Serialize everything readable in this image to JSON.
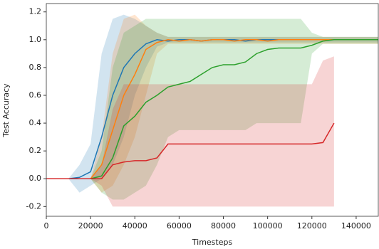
{
  "chart_data": {
    "type": "line",
    "xlabel": "Timesteps",
    "ylabel": "Test Accuracy",
    "x": [
      0,
      5000,
      10000,
      15000,
      20000,
      25000,
      30000,
      35000,
      40000,
      45000,
      50000,
      55000,
      60000,
      65000,
      70000,
      75000,
      80000,
      85000,
      90000,
      95000,
      100000,
      105000,
      110000,
      115000,
      120000,
      125000,
      130000,
      135000,
      140000,
      145000,
      150000
    ],
    "series": [
      {
        "color": "#1f77b4",
        "values": [
          0,
          0,
          0,
          0.01,
          0.05,
          0.3,
          0.6,
          0.8,
          0.9,
          0.97,
          1.0,
          0.99,
          1.0,
          1.0,
          0.99,
          1.0,
          1.0,
          1.0,
          0.99,
          1.0,
          1.0,
          1.0,
          1.0,
          1.0,
          1.0,
          1.0,
          1.0,
          1.0,
          1.0,
          1.0,
          1.0
        ],
        "lower": [
          0,
          0,
          0,
          -0.1,
          -0.05,
          0.0,
          0.1,
          0.3,
          0.6,
          0.8,
          0.95,
          0.98,
          0.98,
          0.98,
          0.98,
          0.98,
          0.98,
          0.98,
          0.98,
          0.98,
          0.98,
          0.98,
          0.98,
          0.98,
          0.98,
          0.98,
          0.98,
          0.98,
          0.98,
          0.98,
          0.98
        ],
        "upper": [
          0,
          0,
          0,
          0.1,
          0.25,
          0.9,
          1.15,
          1.18,
          1.15,
          1.1,
          1.05,
          1.02,
          1.02,
          1.02,
          1.02,
          1.02,
          1.02,
          1.02,
          1.02,
          1.02,
          1.02,
          1.02,
          1.02,
          1.02,
          1.02,
          1.02,
          1.02,
          1.02,
          1.02,
          1.02,
          1.02
        ]
      },
      {
        "color": "#ff7f0e",
        "values": [
          0,
          0,
          0,
          0,
          0,
          0.1,
          0.35,
          0.6,
          0.75,
          0.93,
          0.98,
          1.0,
          0.99,
          1.0,
          0.99,
          1.0,
          1.0,
          0.99,
          1.0,
          1.0,
          0.99,
          1.0,
          1.0,
          1.0,
          1.0,
          1.0,
          1.0,
          1.0,
          1.0,
          1.0,
          1.0
        ],
        "lower": [
          0,
          0,
          0,
          0,
          0,
          -0.1,
          -0.05,
          0.1,
          0.3,
          0.6,
          0.9,
          0.97,
          0.97,
          0.97,
          0.97,
          0.97,
          0.97,
          0.97,
          0.97,
          0.97,
          0.97,
          0.97,
          0.97,
          0.97,
          0.97,
          0.97,
          0.97,
          0.97,
          0.97,
          0.97,
          0.97
        ],
        "upper": [
          0,
          0,
          0,
          0,
          0,
          0.3,
          0.9,
          1.15,
          1.18,
          1.1,
          1.05,
          1.02,
          1.02,
          1.02,
          1.02,
          1.02,
          1.02,
          1.02,
          1.02,
          1.02,
          1.02,
          1.02,
          1.02,
          1.02,
          1.02,
          1.02,
          1.02,
          1.02,
          1.02,
          1.02,
          1.02
        ]
      },
      {
        "color": "#2ca02c",
        "values": [
          0,
          0,
          0,
          0,
          0,
          0.02,
          0.15,
          0.38,
          0.45,
          0.55,
          0.6,
          0.66,
          0.68,
          0.7,
          0.75,
          0.8,
          0.82,
          0.82,
          0.84,
          0.9,
          0.93,
          0.94,
          0.94,
          0.94,
          0.96,
          0.99,
          1.0,
          1.0,
          1.0,
          1.0,
          1.0
        ],
        "lower": [
          0,
          0,
          0,
          0,
          0,
          -0.1,
          -0.15,
          -0.15,
          -0.1,
          -0.05,
          0.1,
          0.3,
          0.35,
          0.35,
          0.35,
          0.35,
          0.35,
          0.35,
          0.35,
          0.4,
          0.4,
          0.4,
          0.4,
          0.4,
          0.9,
          0.97,
          0.97,
          0.97,
          0.97,
          0.97,
          0.97
        ],
        "upper": [
          0,
          0,
          0,
          0,
          0,
          0.2,
          0.8,
          1.05,
          1.1,
          1.15,
          1.15,
          1.15,
          1.15,
          1.15,
          1.15,
          1.15,
          1.15,
          1.15,
          1.15,
          1.15,
          1.15,
          1.15,
          1.15,
          1.15,
          1.05,
          1.02,
          1.02,
          1.02,
          1.02,
          1.02,
          1.02
        ]
      },
      {
        "color": "#d62728",
        "values": [
          0,
          0,
          0,
          0,
          0,
          0,
          0.1,
          0.12,
          0.13,
          0.13,
          0.15,
          0.25,
          0.25,
          0.25,
          0.25,
          0.25,
          0.25,
          0.25,
          0.25,
          0.25,
          0.25,
          0.25,
          0.25,
          0.25,
          0.25,
          0.26,
          0.4,
          null,
          null,
          null,
          null
        ],
        "lower": [
          0,
          0,
          0,
          0,
          0,
          -0.05,
          -0.2,
          -0.2,
          -0.2,
          -0.2,
          -0.2,
          -0.2,
          -0.2,
          -0.2,
          -0.2,
          -0.2,
          -0.2,
          -0.2,
          -0.2,
          -0.2,
          -0.2,
          -0.2,
          -0.2,
          -0.2,
          -0.2,
          -0.2,
          -0.2,
          null,
          null,
          null,
          null
        ],
        "upper": [
          0,
          0,
          0,
          0,
          0,
          0.1,
          0.5,
          0.68,
          0.68,
          0.68,
          0.68,
          0.68,
          0.68,
          0.68,
          0.68,
          0.68,
          0.68,
          0.68,
          0.68,
          0.68,
          0.68,
          0.68,
          0.68,
          0.68,
          0.68,
          0.85,
          0.88,
          null,
          null,
          null,
          null
        ]
      }
    ],
    "xlim": [
      0,
      150000
    ],
    "xticks": [
      0,
      20000,
      40000,
      60000,
      80000,
      100000,
      120000,
      140000
    ],
    "ylim": [
      -0.27,
      1.26
    ],
    "yticks": [
      -0.2,
      {
        "value": 0,
        "label": "0.0"
      },
      0.2,
      0.4,
      0.6,
      0.8,
      {
        "value": 1,
        "label": "1.0"
      },
      1.2
    ],
    "band_opacity": 0.2
  }
}
